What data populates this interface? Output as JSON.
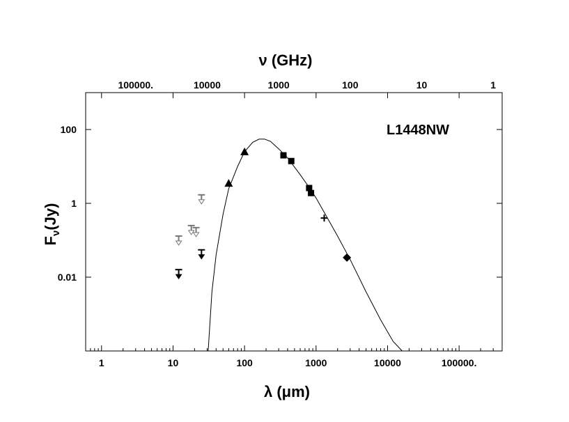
{
  "chart_data": {
    "type": "scatter",
    "title": "",
    "source_label": "L1448NW",
    "xlabel": "λ (μm)",
    "ylabel": "Fν(Jy)",
    "ylabel_main": "F",
    "ylabel_sub": "ν",
    "ylabel_unit": "(Jy)",
    "top_axis_label": "ν (GHz)",
    "x_scale": "log",
    "y_scale": "log",
    "xlim": [
      0.6,
      400000
    ],
    "ylim": [
      0.0001,
      1000
    ],
    "x_ticks": [
      1,
      10,
      100,
      1000,
      10000,
      100000
    ],
    "x_tick_labels": [
      "1",
      "10",
      "100",
      "1000",
      "10000",
      "100000."
    ],
    "y_ticks": [
      0.01,
      1,
      100
    ],
    "y_tick_labels": [
      "0.01",
      "1",
      "100"
    ],
    "top_ticks_ghz": [
      100000,
      10000,
      1000,
      100,
      10,
      1
    ],
    "top_tick_labels": [
      "100000.",
      "10000",
      "1000",
      "100",
      "10",
      "1"
    ],
    "grid": false,
    "series": [
      {
        "marker": "triangle",
        "points": [
          {
            "x": 60,
            "y": 3.5
          },
          {
            "x": 100,
            "y": 25
          }
        ]
      },
      {
        "marker": "square",
        "points": [
          {
            "x": 350,
            "y": 20
          },
          {
            "x": 450,
            "y": 14
          },
          {
            "x": 800,
            "y": 2.6
          },
          {
            "x": 850,
            "y": 1.9
          }
        ]
      },
      {
        "marker": "cross",
        "points": [
          {
            "x": 1300,
            "y": 0.4
          }
        ]
      },
      {
        "marker": "diamond",
        "points": [
          {
            "x": 2700,
            "y": 0.034
          }
        ]
      },
      {
        "marker": "upper-limit-black",
        "points": [
          {
            "x": 12,
            "y": 0.016
          },
          {
            "x": 25,
            "y": 0.055
          }
        ]
      },
      {
        "marker": "upper-limit-gray",
        "points": [
          {
            "x": 12,
            "y": 0.13
          },
          {
            "x": 18,
            "y": 0.25
          },
          {
            "x": 21,
            "y": 0.22
          },
          {
            "x": 25,
            "y": 1.7
          }
        ]
      }
    ],
    "model_curve": {
      "style": "line",
      "points": [
        {
          "x": 31,
          "y": 0.0001
        },
        {
          "x": 35,
          "y": 0.004
        },
        {
          "x": 40,
          "y": 0.04
        },
        {
          "x": 50,
          "y": 0.5
        },
        {
          "x": 60,
          "y": 2.5
        },
        {
          "x": 80,
          "y": 10
        },
        {
          "x": 100,
          "y": 25
        },
        {
          "x": 130,
          "y": 45
        },
        {
          "x": 160,
          "y": 55
        },
        {
          "x": 190,
          "y": 55
        },
        {
          "x": 230,
          "y": 48
        },
        {
          "x": 300,
          "y": 30
        },
        {
          "x": 400,
          "y": 17
        },
        {
          "x": 600,
          "y": 6
        },
        {
          "x": 800,
          "y": 2.7
        },
        {
          "x": 1000,
          "y": 1.4
        },
        {
          "x": 1500,
          "y": 0.35
        },
        {
          "x": 2000,
          "y": 0.13
        },
        {
          "x": 3000,
          "y": 0.03
        },
        {
          "x": 5000,
          "y": 0.004
        },
        {
          "x": 8000,
          "y": 0.0007
        },
        {
          "x": 12000,
          "y": 0.00018
        },
        {
          "x": 16000,
          "y": 0.0001
        }
      ]
    }
  }
}
